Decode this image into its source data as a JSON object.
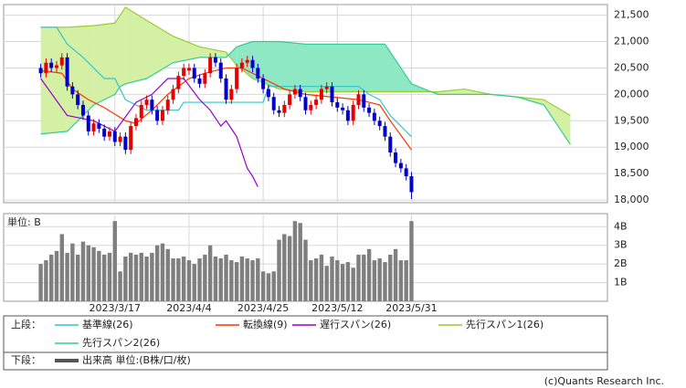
{
  "chart_data": [
    {
      "type": "candlestick",
      "legend_title": "上段：",
      "up_color": "#e60000",
      "down_color": "#0000cc",
      "open": [
        20500,
        20400,
        20600,
        20500,
        20550,
        20700,
        20150,
        20000,
        19800,
        19600,
        19300,
        19450,
        19350,
        19200,
        19300,
        19100,
        19200,
        18950,
        19400,
        19550,
        19800,
        19900,
        19700,
        19500,
        19700,
        19900,
        20100,
        20350,
        20450,
        20500,
        20300,
        20200,
        20400,
        20700,
        20600,
        20300,
        19900,
        20100,
        20500,
        20600,
        20650,
        20500,
        20300,
        20100,
        19950,
        19700,
        19650,
        19800,
        20000,
        20100,
        19950,
        19700,
        19800,
        19900,
        20100,
        20150,
        19850,
        19750,
        19700,
        19500,
        19800,
        20000,
        19750,
        19650,
        19500,
        19400,
        19200,
        18900,
        18700,
        18600,
        18450
      ],
      "high": [
        20580,
        20680,
        20680,
        20630,
        20780,
        20780,
        20230,
        20080,
        19880,
        19680,
        19530,
        19530,
        19430,
        19380,
        19380,
        19280,
        19280,
        19480,
        19630,
        19880,
        19980,
        19980,
        19780,
        19780,
        19980,
        20180,
        20430,
        20580,
        20580,
        20580,
        20380,
        20480,
        20780,
        20780,
        20680,
        20380,
        20180,
        20580,
        20680,
        20730,
        20730,
        20580,
        20380,
        20180,
        20030,
        19780,
        19880,
        20080,
        20180,
        20180,
        20030,
        19880,
        19980,
        20180,
        20230,
        20230,
        19930,
        19830,
        19780,
        19880,
        20080,
        20080,
        19830,
        19730,
        19580,
        19480,
        19280,
        18980,
        18780,
        18680,
        18530
      ],
      "low": [
        20320,
        20320,
        20420,
        20420,
        20470,
        20070,
        19920,
        19720,
        19520,
        19220,
        19220,
        19270,
        19120,
        19120,
        19020,
        19020,
        18870,
        18870,
        19320,
        19470,
        19720,
        19620,
        19420,
        19420,
        19620,
        19820,
        20020,
        20270,
        20370,
        20220,
        20120,
        20120,
        20320,
        20520,
        20220,
        19820,
        19820,
        20020,
        20420,
        20520,
        20420,
        20220,
        20020,
        19870,
        19620,
        19570,
        19570,
        19720,
        19920,
        19870,
        19620,
        19620,
        19720,
        19820,
        20020,
        19770,
        19670,
        19620,
        19420,
        19420,
        19720,
        19670,
        19570,
        19420,
        19320,
        19120,
        18820,
        18620,
        18520,
        18370,
        18020
      ],
      "close": [
        20400,
        20600,
        20500,
        20550,
        20700,
        20150,
        20000,
        19800,
        19600,
        19300,
        19450,
        19350,
        19200,
        19300,
        19100,
        19200,
        18950,
        19400,
        19550,
        19800,
        19900,
        19700,
        19500,
        19700,
        19900,
        20100,
        20350,
        20500,
        20500,
        20300,
        20200,
        20400,
        20700,
        20600,
        20300,
        19900,
        20100,
        20500,
        20600,
        20650,
        20500,
        20300,
        20100,
        19950,
        19700,
        19650,
        19800,
        20000,
        20100,
        19950,
        19700,
        19800,
        19900,
        20100,
        20150,
        19850,
        19750,
        19700,
        19500,
        19800,
        20000,
        19750,
        19650,
        19500,
        19400,
        19200,
        18900,
        18700,
        18600,
        18450,
        18150
      ],
      "series": [
        {
          "name": "基準線(26)",
          "color": "#33c6cc",
          "x": [
            0,
            3,
            5,
            8,
            12,
            14,
            16,
            20,
            26,
            27,
            42,
            43,
            60,
            62,
            64,
            66,
            70
          ],
          "values": [
            21270,
            21270,
            20950,
            20700,
            20300,
            20300,
            19900,
            19700,
            19700,
            19850,
            19850,
            20150,
            20150,
            20000,
            19900,
            19600,
            19200
          ]
        },
        {
          "name": "転換線(9)",
          "color": "#ff3300",
          "x": [
            0,
            4,
            6,
            9,
            12,
            16,
            18,
            21,
            24,
            28,
            31,
            35,
            38,
            42,
            46,
            50,
            55,
            60,
            64,
            66,
            70
          ],
          "values": [
            20450,
            20400,
            20100,
            19900,
            19750,
            19500,
            19450,
            19700,
            20000,
            20300,
            20400,
            20500,
            20500,
            20300,
            20100,
            20000,
            19950,
            19900,
            19800,
            19500,
            18950
          ]
        },
        {
          "name": "遅行スパン(26)",
          "color": "#9900cc",
          "x": [
            0,
            5,
            10,
            14,
            18,
            21,
            24,
            27,
            30,
            32,
            34,
            35,
            37,
            38,
            39,
            40,
            41
          ],
          "values": [
            20300,
            19600,
            19500,
            19300,
            19850,
            20000,
            20300,
            20300,
            19900,
            19700,
            19400,
            19500,
            19200,
            18900,
            18600,
            18450,
            18250
          ]
        },
        {
          "name": "先行スパン1(26)",
          "color": "#99cc33",
          "fill": "#d4f0a4",
          "x": [
            0,
            5,
            10,
            14,
            15,
            16,
            20,
            25,
            30,
            35,
            37,
            40,
            45,
            50,
            55,
            60,
            65,
            70,
            75,
            80,
            85,
            90,
            95,
            100
          ],
          "values": [
            21270,
            21270,
            21300,
            21350,
            21500,
            21650,
            21400,
            21100,
            20900,
            20800,
            20550,
            20300,
            20100,
            20050,
            20050,
            20050,
            20050,
            20050,
            20050,
            20100,
            20000,
            19950,
            19900,
            19600
          ]
        },
        {
          "name": "先行スパン2(26)",
          "color": "#33cc99",
          "fill": "#8fe8c4",
          "x": [
            0,
            5,
            10,
            14,
            15,
            16,
            20,
            25,
            30,
            35,
            37,
            40,
            45,
            50,
            55,
            60,
            65,
            70,
            75,
            80,
            85,
            90,
            95,
            100
          ],
          "values": [
            19250,
            19300,
            19800,
            20000,
            20150,
            20200,
            20300,
            20600,
            20700,
            20700,
            20900,
            21000,
            21000,
            20950,
            20950,
            20950,
            20950,
            20200,
            20000,
            20000,
            20000,
            19950,
            19800,
            19050
          ]
        }
      ],
      "xlim": [
        -7,
        107
      ],
      "ylim": [
        17950,
        21700
      ],
      "yticks": [
        {
          "value": 18000,
          "label": "18,000"
        },
        {
          "value": 18500,
          "label": "18,500"
        },
        {
          "value": 19000,
          "label": "19,000"
        },
        {
          "value": 19500,
          "label": "19,500"
        },
        {
          "value": 20000,
          "label": "20,000"
        },
        {
          "value": 20500,
          "label": "20,500"
        },
        {
          "value": 21000,
          "label": "21,000"
        },
        {
          "value": 21500,
          "label": "21,500"
        }
      ],
      "grid": true
    },
    {
      "type": "bar",
      "legend_title": "下段：",
      "unit_label": "単位: B",
      "categories": [
        null,
        null,
        null,
        null,
        null,
        null,
        null,
        null,
        null,
        null,
        null,
        null,
        null,
        null,
        "2023/3/17",
        null,
        null,
        null,
        null,
        null,
        null,
        null,
        null,
        null,
        null,
        null,
        null,
        null,
        "2023/4/4",
        null,
        null,
        null,
        null,
        null,
        null,
        null,
        null,
        null,
        null,
        null,
        null,
        null,
        "2023/4/25",
        null,
        null,
        null,
        null,
        null,
        null,
        null,
        null,
        null,
        null,
        null,
        null,
        null,
        "2023/5/12",
        null,
        null,
        null,
        null,
        null,
        null,
        null,
        null,
        null,
        null,
        null,
        null,
        null,
        "2023/5/31"
      ],
      "series": [
        {
          "name": "出来高 単位:(B株/口/枚)",
          "color": "#7f7f7f",
          "values": [
            2.0,
            2.2,
            2.5,
            2.7,
            3.6,
            2.6,
            3.1,
            2.5,
            3.2,
            3.0,
            2.9,
            2.7,
            2.5,
            2.6,
            4.3,
            1.6,
            2.4,
            2.6,
            2.5,
            2.6,
            2.4,
            2.6,
            3.0,
            3.1,
            2.8,
            2.3,
            2.3,
            2.4,
            2.2,
            2.0,
            2.3,
            2.5,
            3.0,
            2.4,
            2.3,
            2.5,
            2.2,
            2.1,
            2.4,
            2.3,
            2.2,
            2.3,
            1.6,
            1.5,
            1.6,
            3.3,
            3.6,
            3.5,
            4.3,
            4.2,
            3.3,
            2.2,
            2.3,
            2.5,
            1.9,
            2.4,
            2.2,
            2.0,
            2.1,
            1.8,
            2.5,
            2.5,
            2.8,
            2.2,
            2.3,
            2.1,
            2.5,
            2.8,
            2.2,
            2.2,
            4.3
          ]
        }
      ],
      "xlim": [
        -7,
        107
      ],
      "ylim": [
        0,
        4.7
      ],
      "yticks": [
        {
          "value": 1,
          "label": "1B"
        },
        {
          "value": 2,
          "label": "2B"
        },
        {
          "value": 3,
          "label": "3B"
        },
        {
          "value": 4,
          "label": "4B"
        }
      ],
      "grid": true
    }
  ],
  "footer": "(c)Quants Research Inc."
}
